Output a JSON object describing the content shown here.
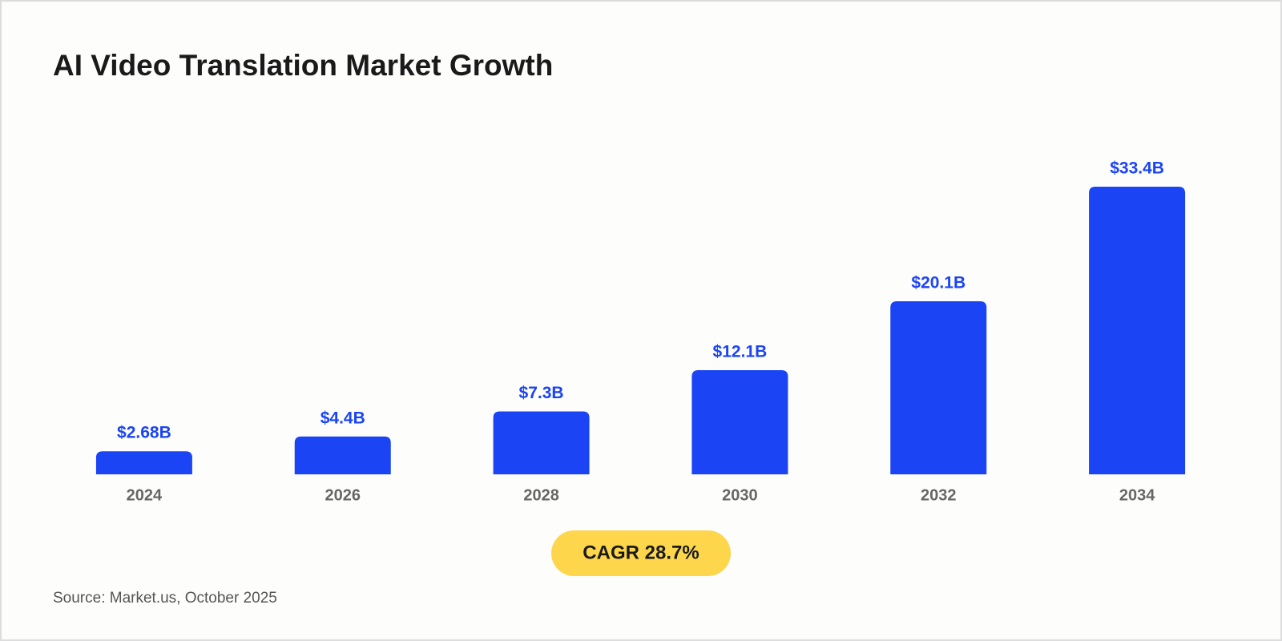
{
  "chart_data": {
    "type": "bar",
    "title": "AI Video Translation Market Growth",
    "categories": [
      "2024",
      "2026",
      "2028",
      "2030",
      "2032",
      "2034"
    ],
    "values": [
      2.68,
      4.4,
      7.3,
      12.1,
      20.1,
      33.4
    ],
    "value_labels": [
      "$2.68B",
      "$4.4B",
      "$7.3B",
      "$12.1B",
      "$20.1B",
      "$33.4B"
    ],
    "color": "#1b44f5",
    "annotation": "CAGR 28.7%",
    "source": "Source: Market.us, October 2025"
  }
}
